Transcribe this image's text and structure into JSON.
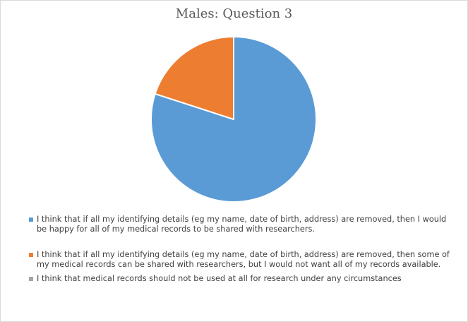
{
  "chart_data": {
    "type": "pie",
    "title": "Males: Question 3",
    "categories": [
      "I think that if all my identifying details (eg my name, date of birth, address) are removed, then I would be happy for all of my medical records to be shared with researchers.",
      "I think that if all my identifying details (eg my name, date of birth, address) are removed, then some of my medical records can be shared with researchers, but I would not want all of my records available.",
      "I think that medical records should not be used at all for research under any circumstances"
    ],
    "values": [
      80,
      20,
      0
    ],
    "colors": [
      "#5b9bd5",
      "#ed7d31",
      "#a5a5a5"
    ],
    "legend_position": "bottom"
  }
}
